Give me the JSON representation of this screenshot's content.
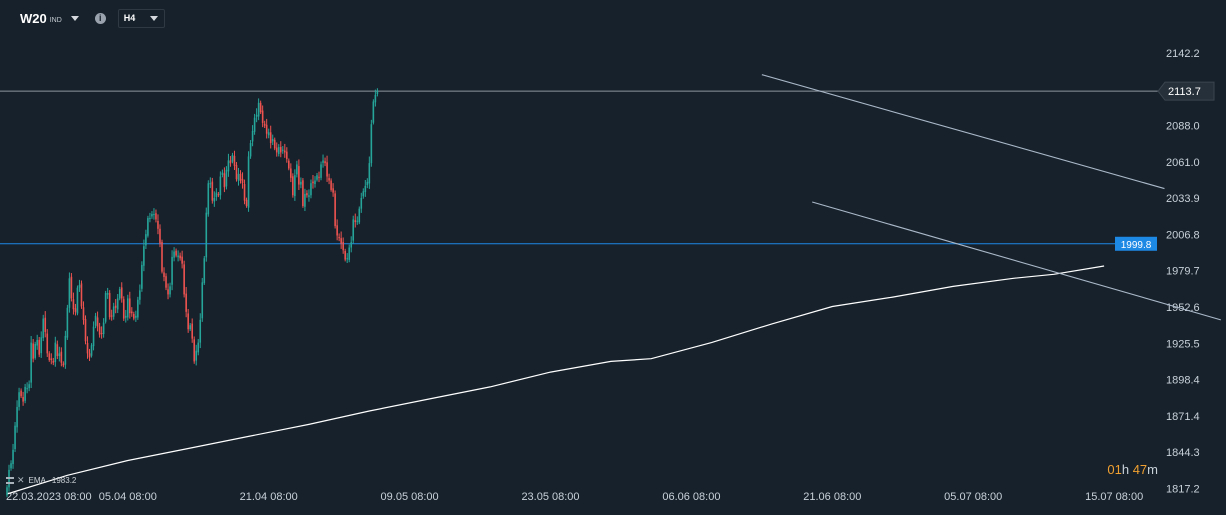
{
  "header": {
    "symbol": "W20",
    "symbol_sub": "IND",
    "timeframe": "H4"
  },
  "indicator": {
    "name": "EMA",
    "value": "1983.2"
  },
  "countdown": {
    "hours": "01",
    "hours_unit": "h",
    "minutes": "47",
    "minutes_unit": "m"
  },
  "colors": {
    "background": "#16212b",
    "up": "#26a69a",
    "down": "#ef5350",
    "ema_line": "#ffffff",
    "price_line": "#8e959c",
    "level_line": "#1e88e5",
    "channel": "#aab8c8"
  },
  "chart_data": {
    "type": "candlestick",
    "y_axis": {
      "ticks": [
        "2142.2",
        "2088.0",
        "2061.0",
        "2033.9",
        "2006.8",
        "1979.7",
        "1952.6",
        "1925.5",
        "1898.4",
        "1871.4",
        "1844.3",
        "1817.2"
      ],
      "ylim": [
        1817.2,
        2151
      ]
    },
    "x_axis": {
      "ticks": [
        "22.03.2023  08:00",
        "05.04  08:00",
        "21.04  08:00",
        "09.05  08:00",
        "23.05  08:00",
        "06.06  08:00",
        "21.06  08:00",
        "05.07  08:00",
        "15.07  08:00"
      ],
      "tick_values": [
        0,
        60,
        130,
        200,
        270,
        340,
        410,
        480,
        550
      ]
    },
    "price_line": {
      "label": "2113.7",
      "value": 2113.7
    },
    "level_line": {
      "label": "1999.8",
      "value": 1999.8
    },
    "closes": [
      1818,
      1831,
      1836,
      1846,
      1864,
      1878,
      1889,
      1886,
      1882,
      1893,
      1892,
      1895,
      1926,
      1914,
      1925,
      1928,
      1917,
      1930,
      1944,
      1934,
      1918,
      1913,
      1913,
      1911,
      1926,
      1916,
      1918,
      1911,
      1909,
      1931,
      1952,
      1974,
      1959,
      1951,
      1949,
      1967,
      1969,
      1953,
      1943,
      1927,
      1918,
      1915,
      1924,
      1938,
      1946,
      1938,
      1932,
      1933,
      1941,
      1963,
      1963,
      1945,
      1946,
      1953,
      1952,
      1959,
      1966,
      1959,
      1944,
      1946,
      1959,
      1948,
      1948,
      1944,
      1946,
      1958,
      1965,
      1984,
      1998,
      2007,
      2019,
      2019,
      2022,
      2022,
      2018,
      2011,
      2000,
      1979,
      1975,
      1967,
      1962,
      1968,
      1990,
      1994,
      1991,
      1991,
      1989,
      1985,
      1962,
      1949,
      1936,
      1939,
      1929,
      1912,
      1920,
      1926,
      1943,
      1971,
      1989,
      2023,
      2045,
      2045,
      2032,
      2034,
      2038,
      2036,
      2050,
      2053,
      2042,
      2055,
      2062,
      2060,
      2066,
      2058,
      2048,
      2052,
      2047,
      2045,
      2032,
      2028,
      2065,
      2075,
      2084,
      2094,
      2096,
      2105,
      2098,
      2090,
      2088,
      2082,
      2083,
      2075,
      2078,
      2071,
      2068,
      2072,
      2068,
      2070,
      2068,
      2063,
      2056,
      2049,
      2036,
      2051,
      2059,
      2044,
      2046,
      2028,
      2037,
      2036,
      2036,
      2045,
      2045,
      2047,
      2051,
      2049,
      2059,
      2062,
      2060,
      2050,
      2047,
      2040,
      2038,
      2013,
      2006,
      2004,
      2000,
      1995,
      1988,
      1989,
      1997,
      2001,
      2018,
      2016,
      2017,
      2026,
      2034,
      2039,
      2043,
      2046,
      2060,
      2089,
      2106,
      2111,
      2113.7
    ],
    "ema": [
      {
        "x": 0,
        "y": 1813
      },
      {
        "x": 30,
        "y": 1827
      },
      {
        "x": 60,
        "y": 1838
      },
      {
        "x": 90,
        "y": 1847
      },
      {
        "x": 120,
        "y": 1856
      },
      {
        "x": 150,
        "y": 1865
      },
      {
        "x": 180,
        "y": 1875
      },
      {
        "x": 210,
        "y": 1884
      },
      {
        "x": 240,
        "y": 1893
      },
      {
        "x": 270,
        "y": 1904
      },
      {
        "x": 300,
        "y": 1912
      },
      {
        "x": 320,
        "y": 1914
      },
      {
        "x": 350,
        "y": 1926
      },
      {
        "x": 380,
        "y": 1940
      },
      {
        "x": 410,
        "y": 1953
      },
      {
        "x": 440,
        "y": 1960
      },
      {
        "x": 470,
        "y": 1968
      },
      {
        "x": 500,
        "y": 1974
      },
      {
        "x": 520,
        "y": 1977
      },
      {
        "x": 545,
        "y": 1983.2
      }
    ],
    "trendlines": [
      {
        "x1": 375,
        "y1": 2126,
        "x2": 575,
        "y2": 2041
      },
      {
        "x1": 400,
        "y1": 2031,
        "x2": 603,
        "y2": 1943
      }
    ]
  }
}
